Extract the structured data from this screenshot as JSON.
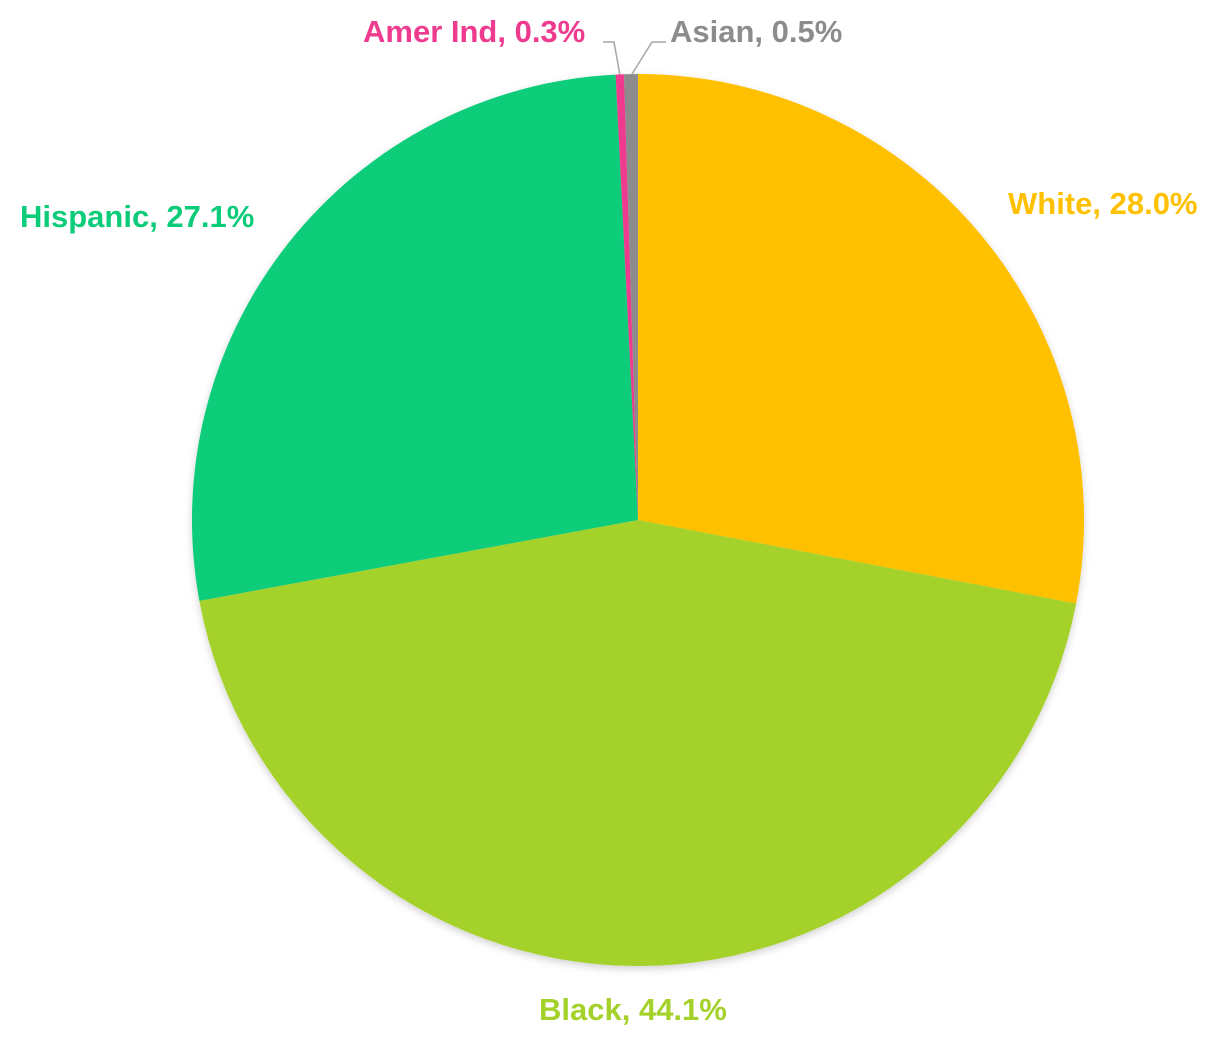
{
  "chart_data": {
    "type": "pie",
    "title": "",
    "start_angle_deg": 0,
    "direction": "clockwise",
    "slices": [
      {
        "name": "White",
        "value": 28.0,
        "label": "White, 28.0%",
        "color": "#FFC000"
      },
      {
        "name": "Black",
        "value": 44.1,
        "label": "Black, 44.1%",
        "color": "#A4D12A"
      },
      {
        "name": "Hispanic",
        "value": 27.1,
        "label": "Hispanic, 27.1%",
        "color": "#0CCC7A"
      },
      {
        "name": "Amer Ind",
        "value": 0.3,
        "label": "Amer Ind, 0.3%",
        "color": "#EE3B8F"
      },
      {
        "name": "Asian",
        "value": 0.5,
        "label": "Asian, 0.5%",
        "color": "#8C8C8C"
      }
    ]
  }
}
